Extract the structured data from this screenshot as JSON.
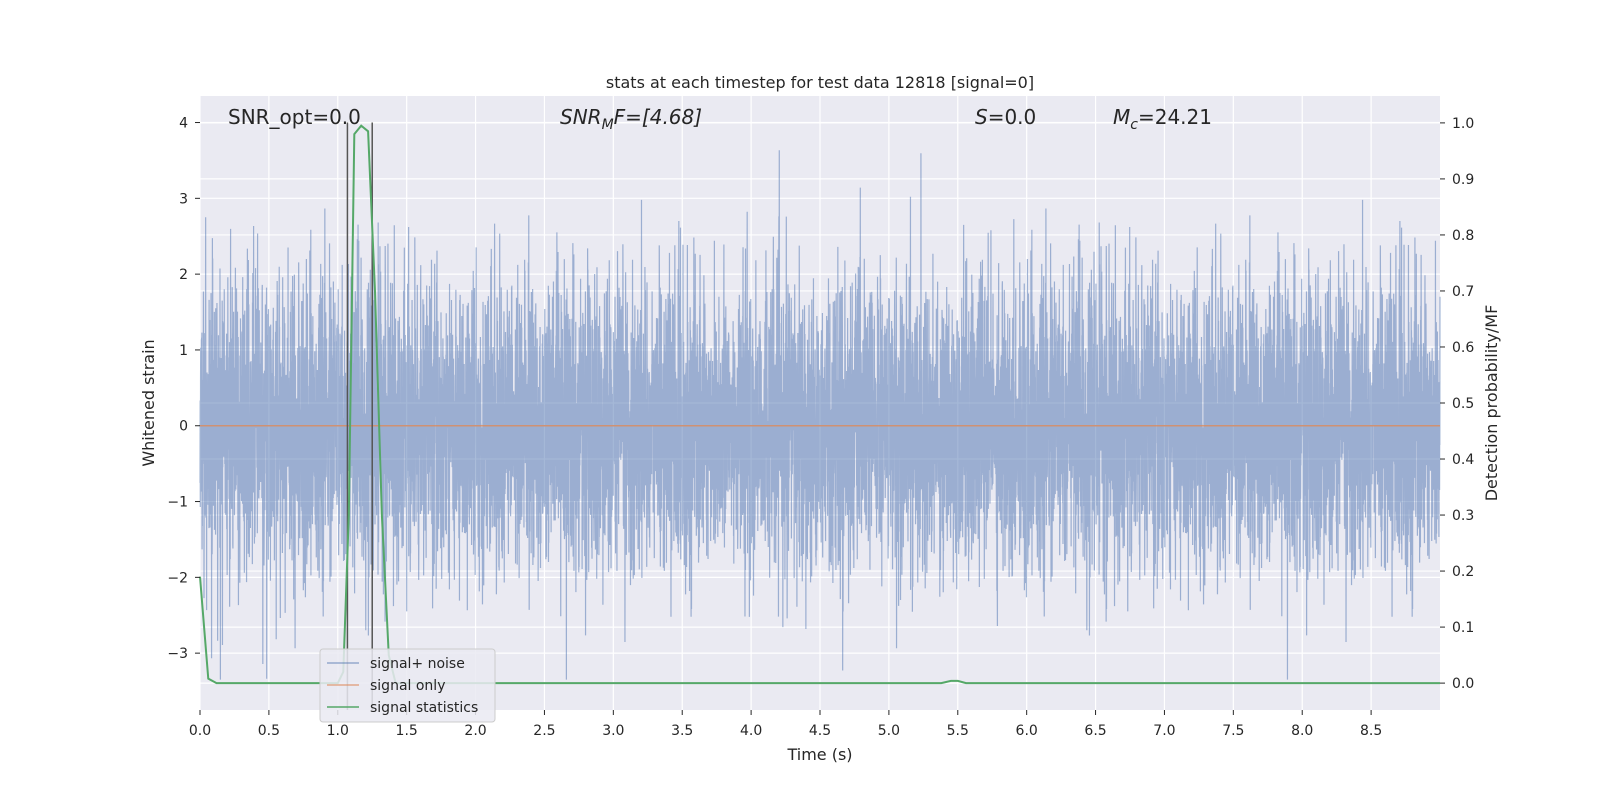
{
  "chart_data": {
    "type": "line",
    "title": "stats at each timestep for test data 12818 [signal=0]",
    "xlabel": "Time (s)",
    "ylabel": "Whitened strain",
    "ylabel_right": "Detection probability/MF",
    "xlim": [
      0.0,
      9.0
    ],
    "ylim": [
      -3.75,
      4.35
    ],
    "ylim_right": [
      -0.048,
      1.048
    ],
    "x_ticks": [
      "0.0",
      "0.5",
      "1.0",
      "1.5",
      "2.0",
      "2.5",
      "3.0",
      "3.5",
      "4.0",
      "4.5",
      "5.0",
      "5.5",
      "6.0",
      "6.5",
      "7.0",
      "7.5",
      "8.0",
      "8.5"
    ],
    "y_ticks": [
      "−3",
      "−2",
      "−1",
      "0",
      "1",
      "2",
      "3",
      "4"
    ],
    "y_ticks_right": [
      "0.0",
      "0.1",
      "0.2",
      "0.3",
      "0.4",
      "0.5",
      "0.6",
      "0.7",
      "0.8",
      "0.9",
      "1.0"
    ],
    "grid": true,
    "legend_position": "bottom-left",
    "annotations": {
      "snr_opt": "SNR_opt=0.0",
      "snr_mf_main": "SNR",
      "snr_mf_sub": "M",
      "snr_mf_tail": "F=[4.68]",
      "s_main": "S",
      "s_tail": "=0.0",
      "mc_main": "M",
      "mc_sub": "c",
      "mc_tail": "=24.21"
    },
    "markers": {
      "vertical_lines_x": [
        1.07,
        1.25
      ]
    },
    "series": [
      {
        "name": "signal+ noise",
        "color": "#4c72b0",
        "description_values": "whitened strain noise, approximately Gaussian with std 1, range about -3.3 to 4.0",
        "envelope_min": -3.35,
        "envelope_max": 4.0
      },
      {
        "name": "signal only",
        "color": "#dd8452",
        "x": [
          0.0,
          9.0
        ],
        "y": [
          0.0,
          0.0
        ]
      },
      {
        "name": "signal statistics",
        "color": "#55a868",
        "axis": "right",
        "x": [
          0.0,
          0.06,
          0.12,
          0.5,
          1.0,
          1.04,
          1.08,
          1.12,
          1.17,
          1.22,
          1.27,
          1.32,
          1.37,
          1.42,
          1.5,
          2.0,
          3.0,
          4.0,
          5.0,
          5.38,
          5.45,
          5.5,
          5.56,
          6.0,
          7.0,
          8.0,
          9.0
        ],
        "y": [
          0.19,
          0.008,
          0.0,
          0.0,
          0.0,
          0.02,
          0.3,
          0.98,
          0.995,
          0.985,
          0.7,
          0.3,
          0.05,
          0.0,
          0.0,
          0.0,
          0.0,
          0.0,
          0.0,
          0.0,
          0.004,
          0.004,
          0.0,
          0.0,
          0.0,
          0.0,
          0.0
        ]
      }
    ]
  }
}
